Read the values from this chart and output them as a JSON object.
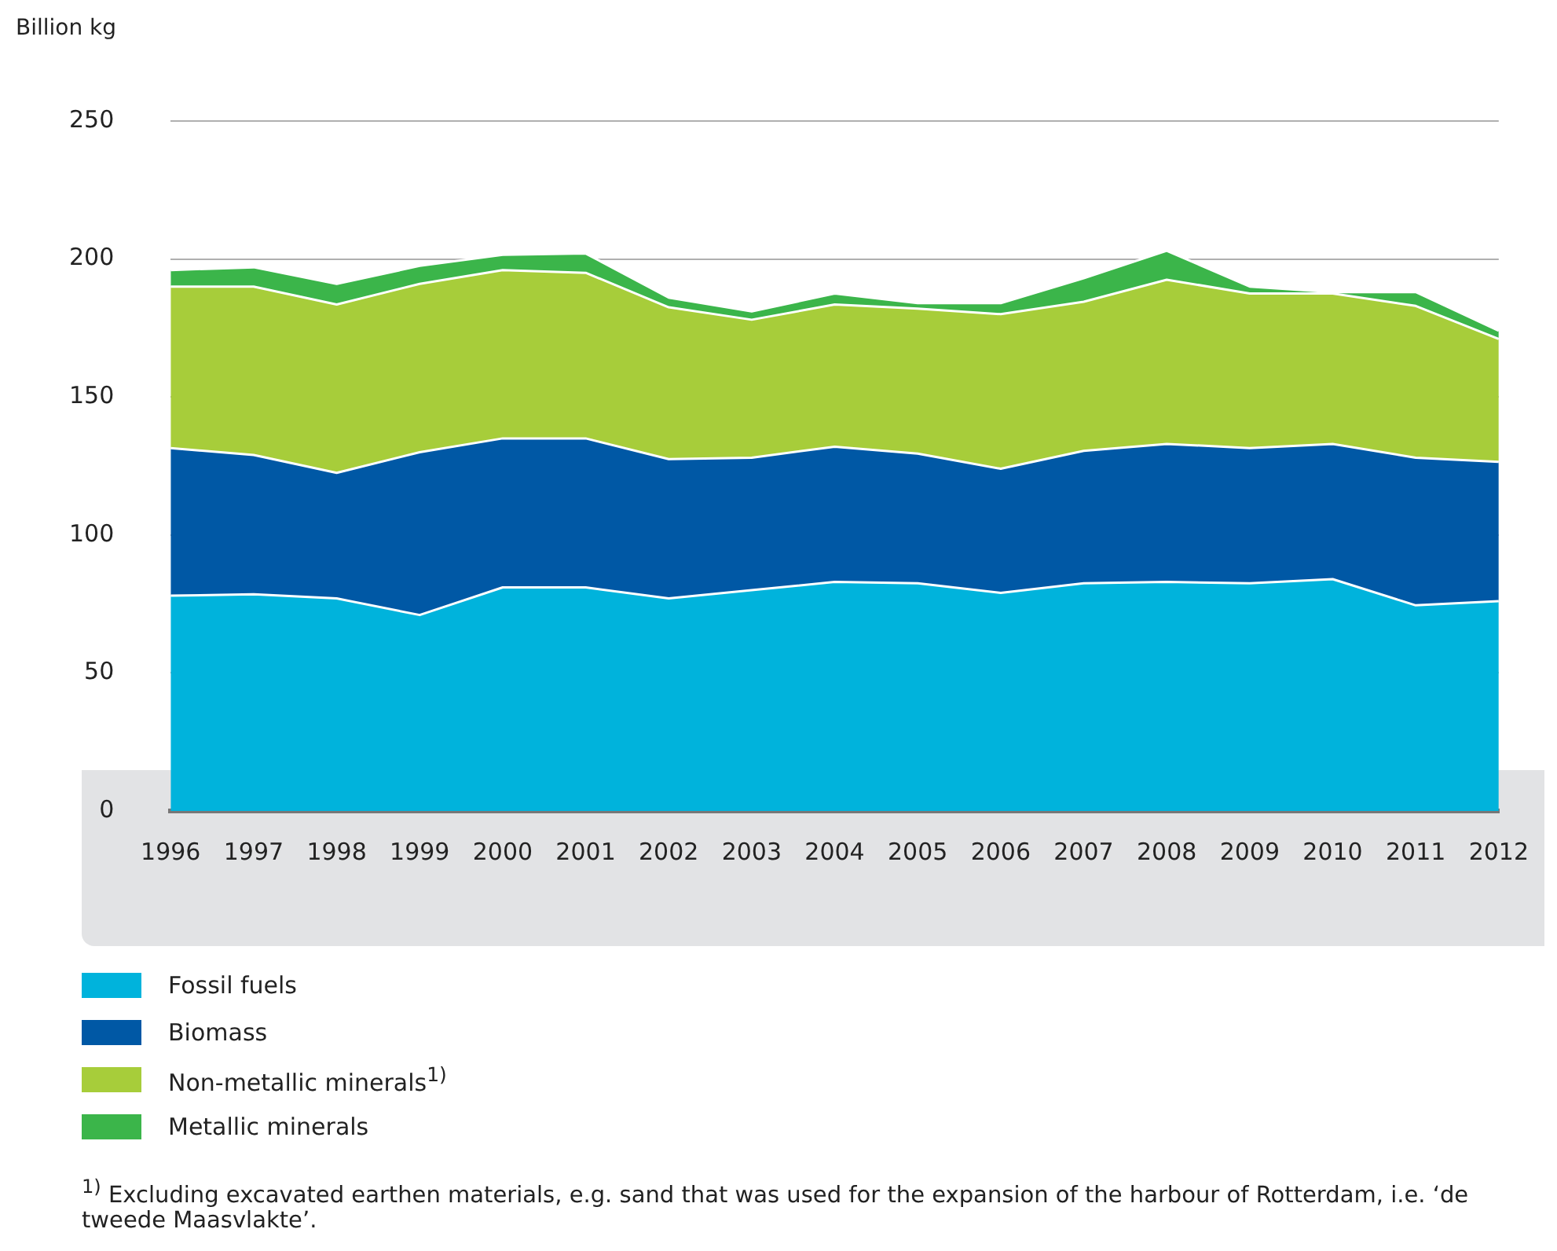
{
  "chart_data": {
    "type": "area",
    "stacked": true,
    "ylabel": "Billion kg",
    "categories": [
      "1996",
      "1997",
      "1998",
      "1999",
      "2000",
      "2001",
      "2002",
      "2003",
      "2004",
      "2005",
      "2006",
      "2007",
      "2008",
      "2009",
      "2010",
      "2011",
      "2012"
    ],
    "series": [
      {
        "name": "Fossil fuels",
        "color": "#00b3dc",
        "values": [
          78,
          78.5,
          77,
          71,
          81,
          81,
          77,
          80,
          83,
          82.5,
          79,
          82.5,
          83,
          82.5,
          84,
          74.5,
          76
        ]
      },
      {
        "name": "Biomass",
        "color": "#0058a5",
        "values": [
          53.5,
          50.5,
          45.5,
          59,
          54,
          54,
          50.5,
          48,
          49,
          47,
          45,
          48,
          50,
          49,
          49,
          53.5,
          50.5
        ]
      },
      {
        "name": "Non-metallic minerals$^{1)}$",
        "color": "#a7cd3a",
        "values": [
          58.5,
          61,
          61,
          61,
          61,
          60,
          55,
          50,
          51.5,
          52.5,
          56,
          54,
          59.5,
          56,
          54.5,
          55,
          44.5
        ]
      },
      {
        "name": "Metallic minerals",
        "color": "#3bb54a",
        "values": [
          6,
          7,
          7.5,
          6.5,
          5.5,
          7,
          3.5,
          3,
          4,
          2,
          4,
          8.5,
          10.5,
          2.5,
          0.5,
          5,
          3
        ]
      }
    ],
    "ylim": [
      0,
      250
    ],
    "yticks": [
      0,
      50,
      100,
      150,
      200,
      250
    ],
    "grid": "y",
    "legend": "bottom",
    "annotations": [
      "$^{1)}$ Excluding excavated earthen materials, e.g. sand that was used for the expansion of the harbour of Rotterdam, i.e. ‘de tweede Maasvlakte’."
    ]
  }
}
